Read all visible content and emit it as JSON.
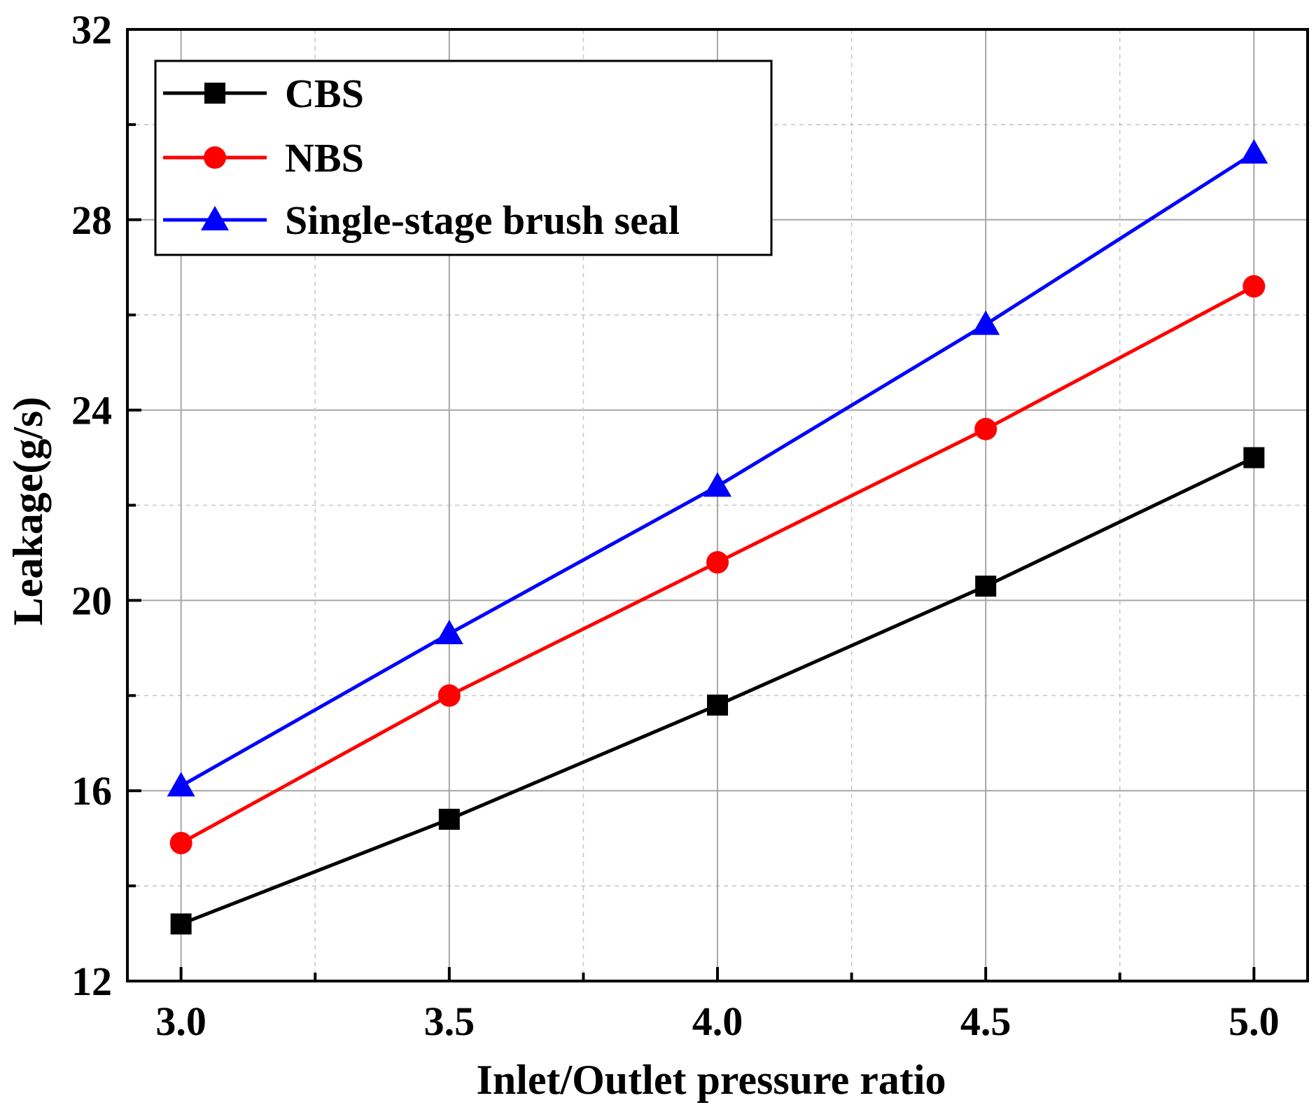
{
  "chart_data": {
    "type": "line",
    "title": "",
    "xlabel": "Inlet/Outlet pressure ratio",
    "ylabel": "Leakage(g/s)",
    "x": [
      3.0,
      3.5,
      4.0,
      4.5,
      5.0
    ],
    "xlim": [
      2.9,
      5.1
    ],
    "ylim": [
      12,
      32
    ],
    "xticks": [
      "3.0",
      "3.5",
      "4.0",
      "4.5",
      "5.0"
    ],
    "yticks": [
      "12",
      "16",
      "20",
      "24",
      "28",
      "32"
    ],
    "grid": true,
    "legend_position": "top-left",
    "series": [
      {
        "name": "CBS",
        "color": "#000000",
        "marker": "square",
        "values": [
          13.2,
          15.4,
          17.8,
          20.3,
          23.0
        ]
      },
      {
        "name": "NBS",
        "color": "#ff0000",
        "marker": "circle",
        "values": [
          14.9,
          18.0,
          20.8,
          23.6,
          26.6
        ]
      },
      {
        "name": "Single-stage brush seal",
        "color": "#0000ff",
        "marker": "triangle",
        "values": [
          16.1,
          19.3,
          22.4,
          25.8,
          29.4
        ]
      }
    ]
  }
}
